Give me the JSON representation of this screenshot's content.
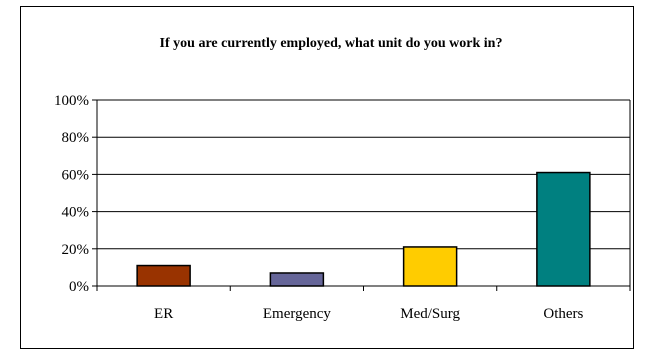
{
  "chart_data": {
    "type": "bar",
    "title": "If you are currently employed, what unit do you work in?",
    "categories": [
      "ER",
      "Emergency",
      "Med/Surg",
      "Others"
    ],
    "values": [
      11,
      7,
      21,
      61
    ],
    "colors": [
      "#993300",
      "#666699",
      "#ffcc00",
      "#008080"
    ],
    "ylim": [
      0,
      100
    ],
    "yticks": [
      0,
      20,
      40,
      60,
      80,
      100
    ],
    "ytick_labels": [
      "0%",
      "20%",
      "40%",
      "60%",
      "80%",
      "100%"
    ],
    "grid": true,
    "legend": "none",
    "xlabel": "",
    "ylabel": ""
  }
}
